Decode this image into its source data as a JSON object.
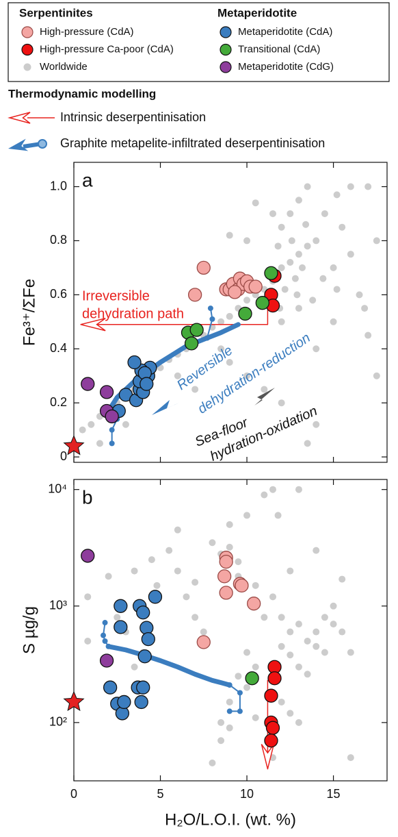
{
  "chart_data": [
    {
      "type": "scatter",
      "panel": "a",
      "ylabel": "Fe³⁺/ΣFe",
      "legend_titles": [
        "Serpentinites",
        "Metaperidotite"
      ],
      "xlim": [
        0,
        18.1
      ],
      "xticks": [
        0,
        5,
        10,
        15
      ],
      "show_xtick_labels": false,
      "ylim": [
        -0.02,
        1.09
      ],
      "yticks": [
        0,
        0.2,
        0.4,
        0.6,
        0.8,
        {
          "value": 1,
          "label": "1.0"
        }
      ],
      "log_y": false,
      "series": [
        {
          "name": "High-pressure (CdA)",
          "color": "#f4a6a3",
          "stroke": "#9a4a46",
          "x": [
            7.5,
            7.0,
            8.8,
            9.0,
            9.2,
            9.5,
            9.6,
            9.8,
            10.0,
            10.2,
            10.5,
            9.3
          ],
          "y": [
            0.7,
            0.6,
            0.62,
            0.62,
            0.64,
            0.62,
            0.66,
            0.64,
            0.65,
            0.63,
            0.63,
            0.61
          ]
        },
        {
          "name": "High-pressure Ca-poor (CdA)",
          "color": "#ee1111",
          "stroke": "#111111",
          "x": [
            11.6,
            11.4,
            11.5
          ],
          "y": [
            0.67,
            0.6,
            0.56
          ]
        },
        {
          "name": "Worldwide",
          "color": "#cccccc",
          "stroke": null,
          "x": [
            0.5,
            1.0,
            1.5,
            2.0,
            2.5,
            3.0,
            3.5,
            4.0,
            4.5,
            5.0,
            5.5,
            6.0,
            6.5,
            7.0,
            7.5,
            8.0,
            8.5,
            9.0,
            9.5,
            10.0,
            10.5,
            11.0,
            11.5,
            12.0,
            12.5,
            13.0,
            13.5,
            14.0,
            12.0,
            12.5,
            13.0,
            13.5,
            14.5,
            15.5,
            16.0,
            16.5,
            17.0,
            17.5,
            15.0,
            14.0,
            13.0,
            12.0,
            11.8,
            12.2,
            12.8,
            13.2,
            13.8,
            14.4,
            15.0,
            15.2,
            11.5,
            10.5,
            10.0,
            9.0,
            8.5,
            9.0,
            10.0,
            11.0,
            12.0,
            14.0,
            13.5,
            15.2,
            16.0,
            17.0,
            17.5,
            16.8,
            6.0,
            7.0,
            1.5,
            3.0,
            12.6,
            13.4,
            12.9,
            11.9
          ],
          "y": [
            0.1,
            0.12,
            0.15,
            0.18,
            0.2,
            0.22,
            0.25,
            0.28,
            0.3,
            0.33,
            0.36,
            0.38,
            0.4,
            0.42,
            0.45,
            0.48,
            0.5,
            0.52,
            0.55,
            0.58,
            0.6,
            0.62,
            0.65,
            0.7,
            0.72,
            0.75,
            0.78,
            0.8,
            0.85,
            0.9,
            0.95,
            1.0,
            0.9,
            0.85,
            0.75,
            0.6,
            0.45,
            0.3,
            0.5,
            0.4,
            0.55,
            0.5,
            0.78,
            0.62,
            0.66,
            0.7,
            0.58,
            0.66,
            0.7,
            0.62,
            0.9,
            0.94,
            0.8,
            0.82,
            0.4,
            0.35,
            0.3,
            0.25,
            0.2,
            0.12,
            0.05,
            0.97,
            1.0,
            1.0,
            0.8,
            0.55,
            0.3,
            0.25,
            0.05,
            0.12,
            0.8,
            0.86,
            0.6,
            0.55
          ]
        },
        {
          "name": "Metaperidotite (CdA)",
          "color": "#3b7dbf",
          "stroke": "#111111",
          "x": [
            2.6,
            3.0,
            3.6,
            3.8,
            4.0,
            3.8,
            4.3,
            4.4,
            3.9,
            3.5,
            4.1,
            4.2
          ],
          "y": [
            0.17,
            0.23,
            0.21,
            0.25,
            0.24,
            0.28,
            0.3,
            0.33,
            0.32,
            0.35,
            0.31,
            0.27
          ]
        },
        {
          "name": "Transitional (CdA)",
          "color": "#44aa3a",
          "stroke": "#111111",
          "x": [
            6.6,
            7.1,
            6.8,
            9.9,
            11.4,
            10.9
          ],
          "y": [
            0.46,
            0.47,
            0.42,
            0.53,
            0.68,
            0.57
          ]
        },
        {
          "name": "Metaperidotite (CdG)",
          "color": "#8e3d9c",
          "stroke": "#111111",
          "x": [
            0.8,
            1.9,
            1.9,
            2.2
          ],
          "y": [
            0.27,
            0.24,
            0.17,
            0.15
          ]
        }
      ],
      "lines": [
        {
          "color": "#e8231f",
          "style": "thin",
          "arrow": "open",
          "x": [
            11.2,
            11.2,
            0.4
          ],
          "y": [
            0.57,
            0.49,
            0.49
          ]
        },
        {
          "color": "#3b7dbf",
          "style": "thick",
          "arrow": null,
          "x": [
            2.0,
            2.5,
            3.5,
            5.0,
            6.5,
            7.7,
            8.5,
            9.5
          ],
          "y": [
            0.17,
            0.22,
            0.28,
            0.35,
            0.41,
            0.44,
            0.46,
            0.49
          ]
        },
        {
          "color": "#3b7dbf",
          "style": "dots",
          "arrow": null,
          "x": [
            2.2,
            2.2,
            2.5,
            2.4
          ],
          "y": [
            0.05,
            0.1,
            0.14,
            0.18
          ]
        },
        {
          "color": "#3b7dbf",
          "style": "dots",
          "arrow": null,
          "x": [
            7.7,
            8.0,
            7.9
          ],
          "y": [
            0.44,
            0.51,
            0.55
          ]
        }
      ],
      "star": {
        "x": 0,
        "y": 0.04,
        "color": "#e32222"
      },
      "annotations": [
        {
          "text": "Irreversible",
          "color": "#e8231f"
        },
        {
          "text": "dehydration path",
          "color": "#e8231f"
        },
        {
          "text": "Reversible",
          "color": "#3b7dbf"
        },
        {
          "text": "dehydration-reduction",
          "color": "#3b7dbf"
        },
        {
          "text": "Sea-floor",
          "color": "#111111"
        },
        {
          "text": "hydration-oxidation",
          "color": "#111111"
        }
      ]
    },
    {
      "type": "scatter",
      "panel": "b",
      "ylabel": "S µg/g",
      "xlabel": "H₂O/L.O.I. (wt. %)",
      "xlim": [
        0,
        18.1
      ],
      "xticks": [
        0,
        5,
        10,
        15
      ],
      "show_xtick_labels": true,
      "ylim": [
        31.6,
        12200
      ],
      "log_y": true,
      "yticks": [
        {
          "value": 100,
          "label": "10²"
        },
        {
          "value": 1000,
          "label": "10³"
        },
        {
          "value": 10000,
          "label": "10⁴"
        }
      ],
      "series": [
        {
          "color": "#cccccc",
          "stroke": null,
          "x": [
            0.8,
            0.8,
            2.0,
            2.5,
            3.0,
            3.5,
            4.0,
            4.5,
            5.5,
            6.0,
            6.5,
            7.0,
            7.5,
            8.0,
            8.5,
            9.0,
            9.0,
            9.5,
            9.5,
            10.0,
            10.5,
            11.0,
            11.0,
            11.5,
            12.0,
            12.0,
            12.5,
            12.5,
            13.0,
            13.0,
            13.0,
            13.5,
            13.5,
            14.0,
            14.0,
            14.5,
            14.5,
            15.0,
            15.0,
            15.5,
            15.5,
            16.0,
            16.0,
            14.0,
            12.5,
            11.8,
            11.5,
            10.0,
            10.5,
            10.0,
            9.5,
            9.0,
            8.5,
            8.0,
            8.5,
            9.0,
            10.5,
            11.5,
            12.0,
            12.5,
            13.0,
            3.5,
            4.8,
            6.0,
            7.0
          ],
          "y": [
            1200,
            500,
            1800,
            800,
            600,
            300,
            400,
            2500,
            3000,
            4500,
            1200,
            800,
            600,
            3500,
            2800,
            5000,
            3200,
            2400,
            1800,
            6000,
            1500,
            9000,
            800,
            1200,
            800,
            450,
            600,
            380,
            700,
            300,
            10000,
            500,
            260,
            600,
            450,
            800,
            400,
            700,
            1000,
            600,
            1700,
            400,
            50,
            3000,
            2000,
            6000,
            10000,
            400,
            300,
            200,
            250,
            150,
            100,
            45,
            70,
            90,
            110,
            50,
            150,
            120,
            100,
            2000,
            1500,
            2000,
            1600
          ]
        },
        {
          "color": "#f4a6a3",
          "stroke": "#9a4a46",
          "x": [
            8.8,
            8.8,
            8.7,
            8.8,
            9.6,
            9.7,
            10.4,
            7.5
          ],
          "y": [
            2600,
            2400,
            1800,
            1300,
            1550,
            1500,
            1050,
            490
          ]
        },
        {
          "color": "#3b7dbf",
          "stroke": "#111111",
          "x": [
            2.7,
            2.7,
            3.8,
            4.7,
            4.0,
            4.2,
            4.3,
            4.1,
            2.1,
            2.5,
            2.8,
            3.7,
            3.9,
            4.0,
            2.9
          ],
          "y": [
            1000,
            660,
            1000,
            1200,
            880,
            650,
            520,
            370,
            200,
            145,
            120,
            200,
            150,
            200,
            150
          ]
        },
        {
          "color": "#44aa3a",
          "stroke": "#111111",
          "x": [
            10.3
          ],
          "y": [
            240
          ]
        },
        {
          "color": "#8e3d9c",
          "stroke": "#111111",
          "x": [
            0.8,
            1.9
          ],
          "y": [
            2700,
            340
          ]
        },
        {
          "color": "#ee1111",
          "stroke": "#111111",
          "x": [
            11.6,
            11.6,
            11.4,
            11.4,
            11.5,
            11.4
          ],
          "y": [
            300,
            240,
            170,
            100,
            90,
            70
          ]
        }
      ],
      "lines": [
        {
          "color": "#e8231f",
          "style": "thin",
          "arrow": "open",
          "x": [
            11.2,
            11.2
          ],
          "y": [
            230,
            40
          ]
        },
        {
          "color": "#3b7dbf",
          "style": "thick",
          "arrow": null,
          "x": [
            2.0,
            3.0,
            4.0,
            5.0,
            6.0,
            7.0,
            8.0,
            8.5,
            9.0
          ],
          "y": [
            450,
            420,
            380,
            340,
            300,
            260,
            230,
            220,
            210
          ]
        },
        {
          "color": "#3b7dbf",
          "style": "dots",
          "arrow": null,
          "x": [
            1.8,
            1.7,
            1.8,
            2.0
          ],
          "y": [
            720,
            560,
            500,
            450
          ]
        },
        {
          "color": "#3b7dbf",
          "style": "dots",
          "arrow": null,
          "x": [
            9.0,
            9.6,
            9.6,
            9.0
          ],
          "y": [
            210,
            180,
            125,
            125
          ]
        }
      ],
      "star": {
        "x": 0,
        "y": 150,
        "color": "#e32222"
      },
      "annotations": []
    }
  ],
  "modelling": {
    "title": "Thermodynamic modelling",
    "paths": [
      {
        "name": "Intrinsic deserpentinisation",
        "color": "#e8231f"
      },
      {
        "name": "Graphite metapelite-infiltrated deserpentinisation",
        "color": "#3b7dbf"
      }
    ]
  }
}
